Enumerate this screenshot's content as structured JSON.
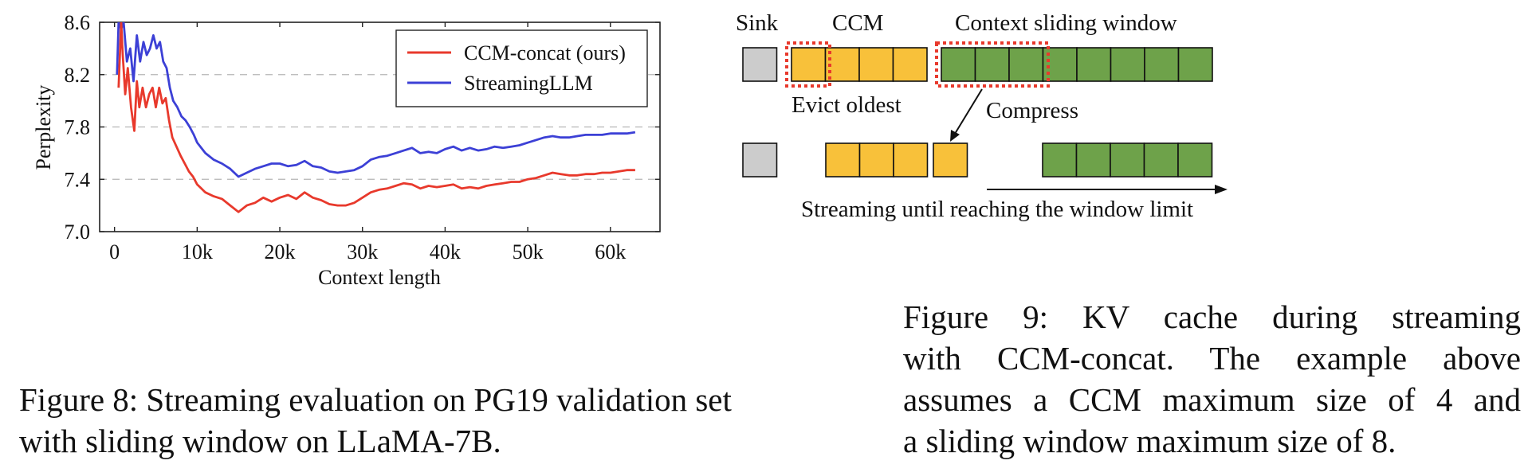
{
  "figure8": {
    "caption_lines": [
      "Figure 8: Streaming evaluation on PG19 validation set",
      "with sliding window on LLaMA-7B."
    ],
    "chart_data": {
      "type": "line",
      "xlabel": "Context length",
      "ylabel": "Perplexity",
      "xlim": [
        -1800,
        66000
      ],
      "ylim": [
        7.0,
        8.6
      ],
      "x_ticks": [
        0,
        10000,
        20000,
        30000,
        40000,
        50000,
        60000
      ],
      "x_tick_labels": [
        "0",
        "10k",
        "20k",
        "30k",
        "40k",
        "50k",
        "60k"
      ],
      "y_ticks": [
        7.0,
        7.4,
        7.8,
        8.2,
        8.6
      ],
      "y_tick_labels": [
        "7.0",
        "7.4",
        "7.8",
        "8.2",
        "8.6"
      ],
      "grid": "horizontal dashed",
      "legend_position": "top-right",
      "series": [
        {
          "name": "CCM-concat (ours)",
          "color": "#e8392c",
          "x": [
            500,
            800,
            1000,
            1300,
            1600,
            2000,
            2400,
            2700,
            3000,
            3400,
            3800,
            4200,
            4600,
            5000,
            5400,
            5800,
            6200,
            6600,
            7000,
            7500,
            8000,
            8500,
            9000,
            9500,
            10000,
            11000,
            12000,
            13000,
            14000,
            15000,
            16000,
            17000,
            18000,
            19000,
            20000,
            21000,
            22000,
            23000,
            24000,
            25000,
            26000,
            27000,
            28000,
            29000,
            30000,
            31000,
            32000,
            33000,
            34000,
            35000,
            36000,
            37000,
            38000,
            39000,
            40000,
            41000,
            42000,
            43000,
            44000,
            45000,
            46000,
            47000,
            48000,
            49000,
            50000,
            51000,
            52000,
            53000,
            54000,
            55000,
            56000,
            57000,
            58000,
            59000,
            60000,
            61000,
            62000,
            63000
          ],
          "y": [
            8.1,
            8.6,
            8.35,
            8.05,
            8.25,
            7.95,
            7.77,
            8.15,
            7.95,
            8.1,
            7.95,
            8.05,
            8.1,
            7.95,
            8.1,
            7.98,
            8.02,
            7.85,
            7.72,
            7.65,
            7.58,
            7.52,
            7.46,
            7.42,
            7.36,
            7.3,
            7.27,
            7.25,
            7.2,
            7.15,
            7.2,
            7.22,
            7.26,
            7.23,
            7.26,
            7.28,
            7.25,
            7.3,
            7.26,
            7.24,
            7.21,
            7.2,
            7.2,
            7.22,
            7.26,
            7.3,
            7.32,
            7.33,
            7.35,
            7.37,
            7.36,
            7.33,
            7.35,
            7.34,
            7.35,
            7.36,
            7.33,
            7.34,
            7.33,
            7.35,
            7.36,
            7.37,
            7.38,
            7.38,
            7.4,
            7.41,
            7.43,
            7.45,
            7.44,
            7.43,
            7.43,
            7.44,
            7.44,
            7.45,
            7.45,
            7.46,
            7.47,
            7.47
          ]
        },
        {
          "name": "StreamingLLM",
          "color": "#3c40d6",
          "x": [
            300,
            500,
            800,
            1100,
            1500,
            1900,
            2300,
            2700,
            3100,
            3500,
            3900,
            4300,
            4700,
            5100,
            5500,
            5900,
            6300,
            6700,
            7100,
            7600,
            8100,
            8600,
            9100,
            9600,
            10000,
            11000,
            12000,
            13000,
            14000,
            15000,
            16000,
            17000,
            18000,
            19000,
            20000,
            21000,
            22000,
            23000,
            24000,
            25000,
            26000,
            27000,
            28000,
            29000,
            30000,
            31000,
            32000,
            33000,
            34000,
            35000,
            36000,
            37000,
            38000,
            39000,
            40000,
            41000,
            42000,
            43000,
            44000,
            45000,
            46000,
            47000,
            48000,
            49000,
            50000,
            51000,
            52000,
            53000,
            54000,
            55000,
            56000,
            57000,
            58000,
            59000,
            60000,
            61000,
            62000,
            63000
          ],
          "y": [
            8.2,
            8.6,
            8.55,
            8.6,
            8.3,
            8.4,
            8.15,
            8.5,
            8.3,
            8.45,
            8.35,
            8.4,
            8.5,
            8.4,
            8.45,
            8.3,
            8.25,
            8.1,
            8.0,
            7.95,
            7.88,
            7.85,
            7.8,
            7.74,
            7.68,
            7.6,
            7.55,
            7.52,
            7.48,
            7.42,
            7.45,
            7.48,
            7.5,
            7.52,
            7.52,
            7.5,
            7.51,
            7.54,
            7.5,
            7.49,
            7.46,
            7.45,
            7.46,
            7.47,
            7.5,
            7.55,
            7.57,
            7.58,
            7.6,
            7.62,
            7.64,
            7.6,
            7.61,
            7.6,
            7.63,
            7.65,
            7.62,
            7.64,
            7.62,
            7.63,
            7.65,
            7.64,
            7.65,
            7.66,
            7.68,
            7.7,
            7.72,
            7.73,
            7.72,
            7.72,
            7.73,
            7.74,
            7.74,
            7.74,
            7.75,
            7.75,
            7.75,
            7.76
          ]
        }
      ]
    }
  },
  "figure9": {
    "labels": {
      "sink": "Sink",
      "ccm": "CCM",
      "window": "Context sliding window",
      "evict": "Evict oldest",
      "compress": "Compress",
      "streaming": "Streaming until reaching the window limit"
    },
    "colors": {
      "sink": "#cccccc",
      "ccm": "#f8c13a",
      "window": "#6ea24a",
      "highlight": "#e8392c"
    },
    "caption_lines": [
      "Figure 9:  KV cache during streaming",
      "with CCM-concat.  The example above",
      "assumes a CCM maximum size of 4 and",
      "a sliding window maximum size of 8."
    ]
  }
}
